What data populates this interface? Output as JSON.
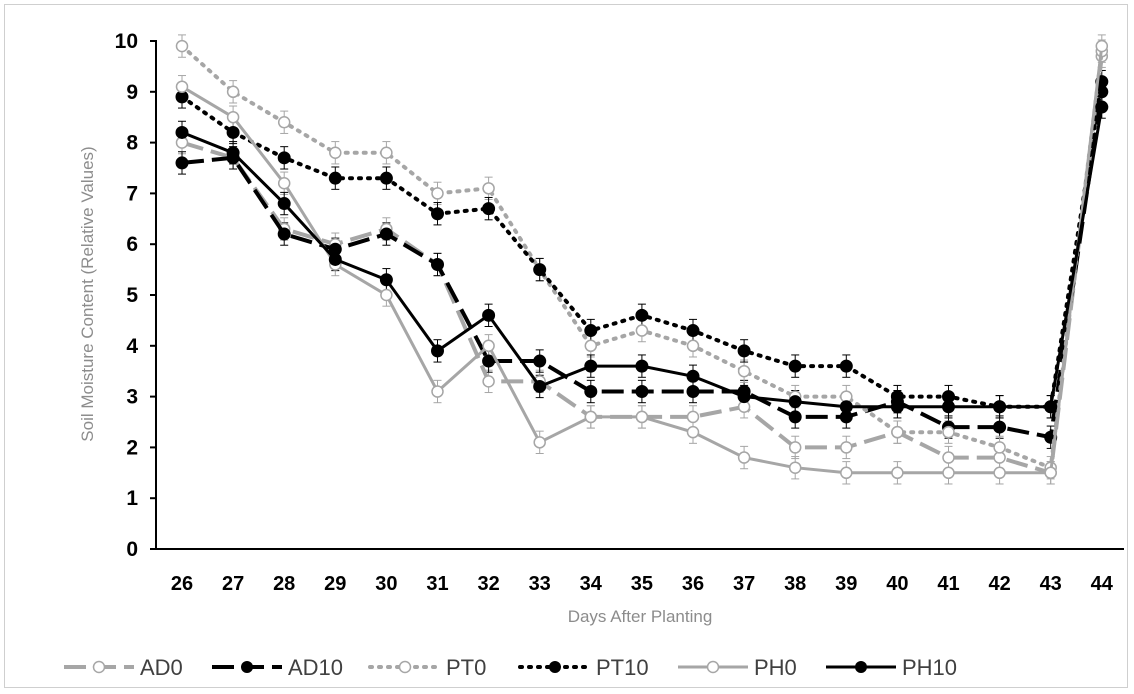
{
  "chart_data": {
    "type": "line",
    "title": "",
    "xlabel": "Days After Planting",
    "ylabel": "Soil Moisture Content (Relative Values)",
    "ylim": [
      0,
      10
    ],
    "yticks": [
      "0",
      "1",
      "2",
      "3",
      "4",
      "5",
      "6",
      "7",
      "8",
      "9",
      "10"
    ],
    "grid": false,
    "legend_position": "bottom",
    "categories": [
      "26",
      "27",
      "28",
      "29",
      "30",
      "31",
      "32",
      "33",
      "34",
      "35",
      "36",
      "37",
      "38",
      "39",
      "40",
      "41",
      "42",
      "43",
      "44"
    ],
    "series": [
      {
        "name": "AD0",
        "color": "#a6a6a6",
        "dash": "22 8",
        "marker": "open",
        "width": 4,
        "values": [
          8.0,
          7.7,
          6.3,
          6.0,
          6.3,
          5.6,
          3.3,
          3.3,
          2.6,
          2.6,
          2.6,
          2.8,
          2.0,
          2.0,
          2.3,
          1.8,
          1.8,
          1.5,
          9.7
        ]
      },
      {
        "name": "AD10",
        "color": "#000000",
        "dash": "22 8",
        "marker": "filled",
        "width": 4,
        "values": [
          7.6,
          7.7,
          6.2,
          5.9,
          6.2,
          5.6,
          3.7,
          3.7,
          3.1,
          3.1,
          3.1,
          3.1,
          2.6,
          2.6,
          2.9,
          2.4,
          2.4,
          2.2,
          9.0
        ]
      },
      {
        "name": "PT0",
        "color": "#a6a6a6",
        "dash": "2 7",
        "marker": "open",
        "width": 4,
        "values": [
          9.9,
          9.0,
          8.4,
          7.8,
          7.8,
          7.0,
          7.1,
          5.5,
          4.0,
          4.3,
          4.0,
          3.5,
          3.0,
          3.0,
          2.3,
          2.3,
          2.0,
          1.6,
          9.8
        ]
      },
      {
        "name": "PT10",
        "color": "#000000",
        "dash": "2 7",
        "marker": "filled",
        "width": 4,
        "values": [
          8.9,
          8.2,
          7.7,
          7.3,
          7.3,
          6.6,
          6.7,
          5.5,
          4.3,
          4.6,
          4.3,
          3.9,
          3.6,
          3.6,
          3.0,
          3.0,
          2.8,
          2.8,
          9.2
        ]
      },
      {
        "name": "PH0",
        "color": "#a6a6a6",
        "dash": "",
        "marker": "open",
        "width": 3,
        "values": [
          9.1,
          8.5,
          7.2,
          5.6,
          5.0,
          3.1,
          4.0,
          2.1,
          2.6,
          2.6,
          2.3,
          1.8,
          1.6,
          1.5,
          1.5,
          1.5,
          1.5,
          1.5,
          9.9
        ]
      },
      {
        "name": "PH10",
        "color": "#000000",
        "dash": "",
        "marker": "filled",
        "width": 3,
        "values": [
          8.2,
          7.8,
          6.8,
          5.7,
          5.3,
          3.9,
          4.6,
          3.2,
          3.6,
          3.6,
          3.4,
          3.0,
          2.9,
          2.8,
          2.8,
          2.8,
          2.8,
          2.8,
          8.7
        ]
      }
    ]
  }
}
